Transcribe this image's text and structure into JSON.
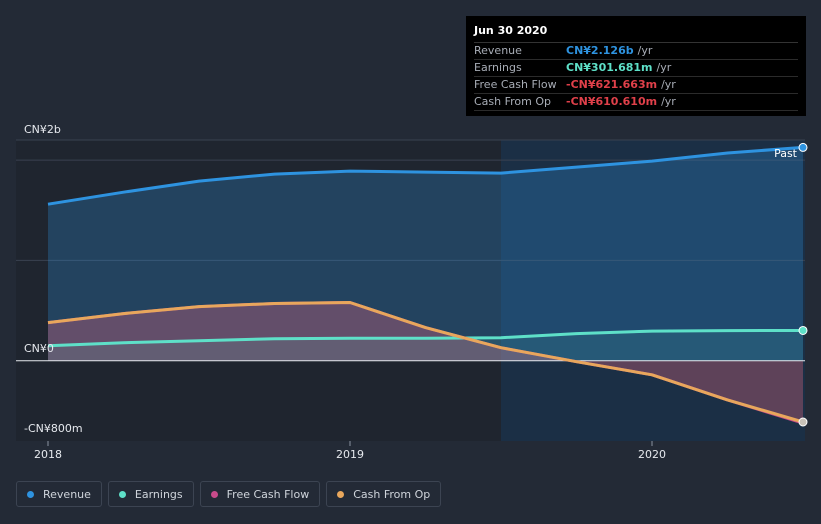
{
  "chart_data": {
    "type": "area",
    "x_unit": "year",
    "xlim": [
      2017.96,
      2020.5
    ],
    "ylim": [
      -800,
      2200
    ],
    "y_ticks": [
      {
        "value": 2000,
        "label": "CN¥2b"
      },
      {
        "value": 0,
        "label": "CN¥0"
      },
      {
        "value": -800,
        "label": "-CN¥800m"
      }
    ],
    "x_ticks": [
      {
        "value": 2018,
        "label": "2018"
      },
      {
        "value": 2019,
        "label": "2019"
      },
      {
        "value": 2020,
        "label": "2020"
      }
    ],
    "past_region_start": 2019.5,
    "past_label": "Past",
    "series": [
      {
        "key": "revenue",
        "name": "Revenue",
        "color": "#2e93e0",
        "x": [
          2018.0,
          2018.25,
          2018.5,
          2018.75,
          2019.0,
          2019.25,
          2019.5,
          2019.75,
          2020.0,
          2020.25,
          2020.5
        ],
        "values": [
          1560,
          1680,
          1790,
          1860,
          1890,
          1880,
          1870,
          1930,
          1990,
          2070,
          2126
        ]
      },
      {
        "key": "earnings",
        "name": "Earnings",
        "color": "#5ee0c8",
        "x": [
          2018.0,
          2018.25,
          2018.5,
          2018.75,
          2019.0,
          2019.25,
          2019.5,
          2019.75,
          2020.0,
          2020.25,
          2020.5
        ],
        "values": [
          150,
          180,
          200,
          220,
          225,
          225,
          230,
          270,
          295,
          300,
          301.681
        ]
      },
      {
        "key": "fcf",
        "name": "Free Cash Flow",
        "color": "#c84b8b",
        "x": [
          2018.0,
          2018.25,
          2018.5,
          2018.75,
          2019.0,
          2019.25,
          2019.5,
          2019.75,
          2020.0,
          2020.25,
          2020.5
        ],
        "values": [
          380,
          470,
          540,
          570,
          580,
          330,
          130,
          -10,
          -140,
          -390,
          -621.663
        ]
      },
      {
        "key": "cfo",
        "name": "Cash From Op",
        "color": "#e8a75c",
        "x": [
          2018.0,
          2018.25,
          2018.5,
          2018.75,
          2019.0,
          2019.25,
          2019.5,
          2019.75,
          2020.0,
          2020.25,
          2020.5
        ],
        "values": [
          380,
          470,
          540,
          570,
          580,
          330,
          130,
          -10,
          -140,
          -390,
          -610.61
        ]
      }
    ]
  },
  "tooltip": {
    "date": "Jun 30 2020",
    "rows": [
      {
        "label": "Revenue",
        "value": "CN¥2.126b",
        "unit": "/yr",
        "color": "#2e93e0"
      },
      {
        "label": "Earnings",
        "value": "CN¥301.681m",
        "unit": "/yr",
        "color": "#5ee0c8"
      },
      {
        "label": "Free Cash Flow",
        "value": "-CN¥621.663m",
        "unit": "/yr",
        "color": "#e0404a"
      },
      {
        "label": "Cash From Op",
        "value": "-CN¥610.610m",
        "unit": "/yr",
        "color": "#e0404a"
      }
    ]
  },
  "legend": {
    "items": [
      {
        "label": "Revenue",
        "color": "#2e93e0"
      },
      {
        "label": "Earnings",
        "color": "#5ee0c8"
      },
      {
        "label": "Free Cash Flow",
        "color": "#c84b8b"
      },
      {
        "label": "Cash From Op",
        "color": "#e8a75c"
      }
    ]
  }
}
